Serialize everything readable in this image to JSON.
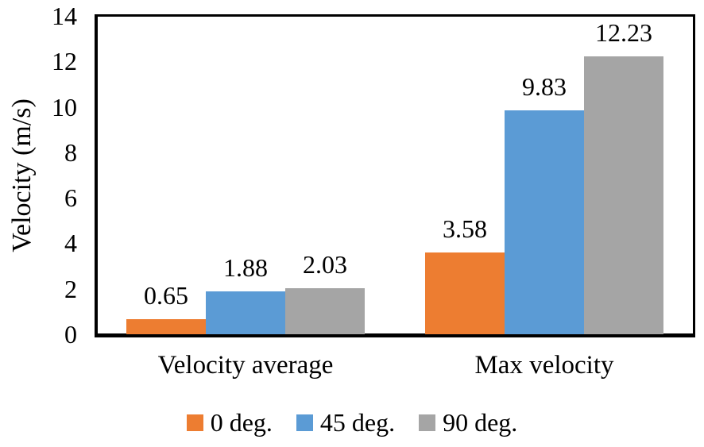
{
  "chart_data": {
    "type": "bar",
    "title": "",
    "categories": [
      "Velocity average",
      "Max velocity"
    ],
    "series": [
      {
        "name": "0 deg.",
        "color": "#ED7D31",
        "values": [
          0.65,
          3.58
        ]
      },
      {
        "name": "45 deg.",
        "color": "#5B9BD5",
        "values": [
          1.88,
          9.83
        ]
      },
      {
        "name": "90 deg.",
        "color": "#A5A5A5",
        "values": [
          2.03,
          12.23
        ]
      }
    ],
    "xlabel": "",
    "ylabel": "Velocity (m/s)",
    "ylim": [
      0,
      14
    ],
    "yticks": [
      0,
      2,
      4,
      6,
      8,
      10,
      12,
      14
    ],
    "grid": false,
    "legend_position": "bottom",
    "value_label_decimals": 2,
    "colors": {
      "axis": "#000000",
      "text": "#000000",
      "background": "#ffffff"
    }
  }
}
